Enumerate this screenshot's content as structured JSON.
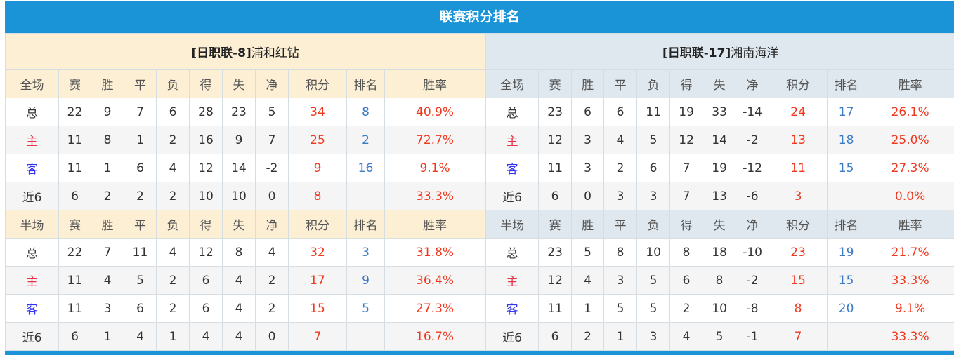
{
  "title": "联赛积分排名",
  "teams": [
    {
      "league_prefix": "[日职联-8]",
      "name": "浦和红钻",
      "sections": [
        {
          "label": "全场",
          "columns": [
            "赛",
            "胜",
            "平",
            "负",
            "得",
            "失",
            "净",
            "积分",
            "排名",
            "胜率"
          ],
          "rows": [
            {
              "type": "总",
              "values": [
                "22",
                "9",
                "7",
                "6",
                "28",
                "23",
                "5",
                "34",
                "8",
                "40.9%"
              ]
            },
            {
              "type": "主",
              "values": [
                "11",
                "8",
                "1",
                "2",
                "16",
                "9",
                "7",
                "25",
                "2",
                "72.7%"
              ]
            },
            {
              "type": "客",
              "values": [
                "11",
                "1",
                "6",
                "4",
                "12",
                "14",
                "-2",
                "9",
                "16",
                "9.1%"
              ]
            },
            {
              "type": "近6",
              "values": [
                "6",
                "2",
                "2",
                "2",
                "10",
                "10",
                "0",
                "8",
                "",
                "33.3%"
              ]
            }
          ]
        },
        {
          "label": "半场",
          "columns": [
            "赛",
            "胜",
            "平",
            "负",
            "得",
            "失",
            "净",
            "积分",
            "排名",
            "胜率"
          ],
          "rows": [
            {
              "type": "总",
              "values": [
                "22",
                "7",
                "11",
                "4",
                "12",
                "8",
                "4",
                "32",
                "3",
                "31.8%"
              ]
            },
            {
              "type": "主",
              "values": [
                "11",
                "4",
                "5",
                "2",
                "6",
                "4",
                "2",
                "17",
                "9",
                "36.4%"
              ]
            },
            {
              "type": "客",
              "values": [
                "11",
                "3",
                "6",
                "2",
                "6",
                "4",
                "2",
                "15",
                "5",
                "27.3%"
              ]
            },
            {
              "type": "近6",
              "values": [
                "6",
                "1",
                "4",
                "1",
                "4",
                "4",
                "0",
                "7",
                "",
                "16.7%"
              ]
            }
          ]
        }
      ]
    },
    {
      "league_prefix": "[日职联-17]",
      "name": "湘南海洋",
      "sections": [
        {
          "label": "全场",
          "columns": [
            "赛",
            "胜",
            "平",
            "负",
            "得",
            "失",
            "净",
            "积分",
            "排名",
            "胜率"
          ],
          "rows": [
            {
              "type": "总",
              "values": [
                "23",
                "6",
                "6",
                "11",
                "19",
                "33",
                "-14",
                "24",
                "17",
                "26.1%"
              ]
            },
            {
              "type": "主",
              "values": [
                "12",
                "3",
                "4",
                "5",
                "12",
                "14",
                "-2",
                "13",
                "18",
                "25.0%"
              ]
            },
            {
              "type": "客",
              "values": [
                "11",
                "3",
                "2",
                "6",
                "7",
                "19",
                "-12",
                "11",
                "15",
                "27.3%"
              ]
            },
            {
              "type": "近6",
              "values": [
                "6",
                "0",
                "3",
                "3",
                "7",
                "13",
                "-6",
                "3",
                "",
                "0.0%"
              ]
            }
          ]
        },
        {
          "label": "半场",
          "columns": [
            "赛",
            "胜",
            "平",
            "负",
            "得",
            "失",
            "净",
            "积分",
            "排名",
            "胜率"
          ],
          "rows": [
            {
              "type": "总",
              "values": [
                "23",
                "5",
                "8",
                "10",
                "8",
                "18",
                "-10",
                "23",
                "19",
                "21.7%"
              ]
            },
            {
              "type": "主",
              "values": [
                "12",
                "4",
                "3",
                "5",
                "6",
                "8",
                "-2",
                "15",
                "15",
                "33.3%"
              ]
            },
            {
              "type": "客",
              "values": [
                "11",
                "1",
                "5",
                "5",
                "2",
                "10",
                "-8",
                "8",
                "20",
                "9.1%"
              ]
            },
            {
              "type": "近6",
              "values": [
                "6",
                "2",
                "1",
                "3",
                "4",
                "5",
                "-1",
                "7",
                "",
                "33.3%"
              ]
            }
          ]
        }
      ]
    }
  ]
}
